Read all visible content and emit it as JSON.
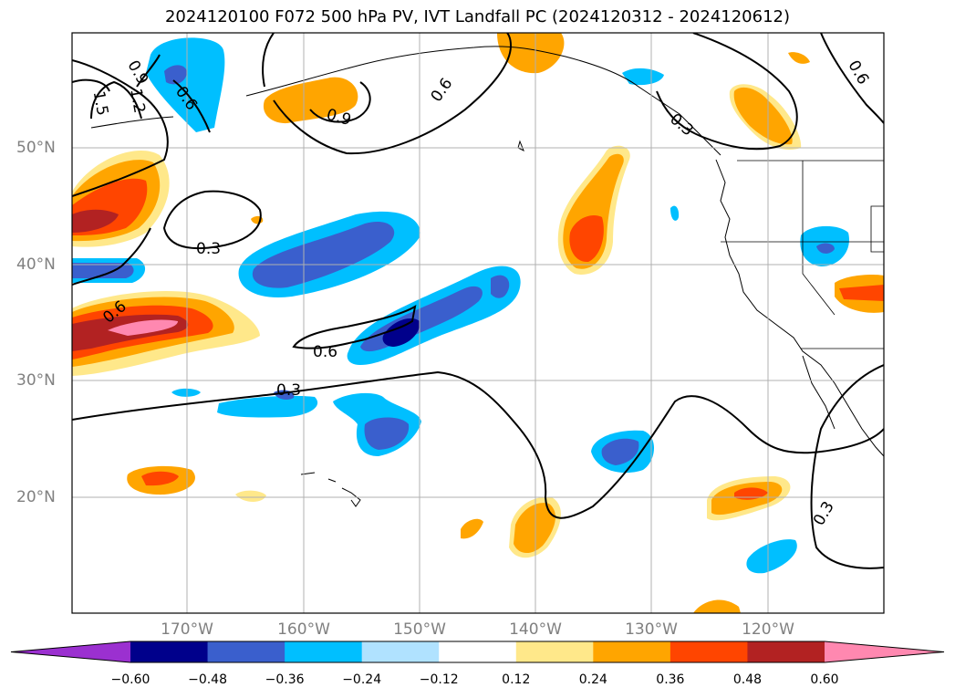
{
  "title": "2024120100 F072 500 hPa PV, IVT Landfall PC (2024120312 - 2024120612)",
  "map": {
    "lat_labels": [
      "50°N",
      "40°N",
      "30°N",
      "20°N"
    ],
    "lon_labels": [
      "170°W",
      "160°W",
      "150°W",
      "140°W",
      "130°W",
      "120°W"
    ],
    "contour_labels": [
      "0.9",
      "1.2",
      "1.5",
      "0.6",
      "0.9",
      "0.6",
      "0.3",
      "0.6",
      "0.6",
      "0.3",
      "0.3",
      "0.6",
      "0.3"
    ]
  },
  "colorbar": {
    "ticks": [
      "−0.60",
      "−0.48",
      "−0.36",
      "−0.24",
      "−0.12",
      "0.12",
      "0.24",
      "0.36",
      "0.48",
      "0.60"
    ],
    "colors": [
      "#9b30d0",
      "#00008b",
      "#3a5fcd",
      "#00bfff",
      "#b0e2ff",
      "#ffffff",
      "#ffe88a",
      "#ffa500",
      "#ff4500",
      "#b22222",
      "#ff88b0"
    ]
  }
}
